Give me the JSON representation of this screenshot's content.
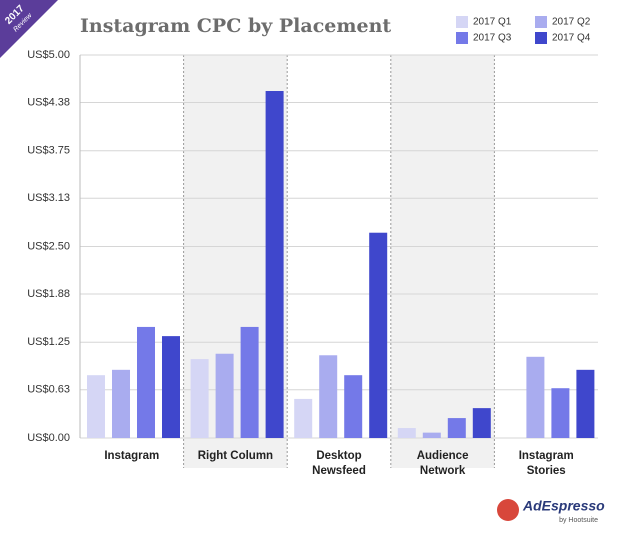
{
  "badge": {
    "year": "2017",
    "text": "Review"
  },
  "logo": {
    "name": "AdEspresso",
    "sub": "by Hootsuite"
  },
  "chart_data": {
    "type": "bar",
    "title": "Instagram CPC by Placement",
    "categories": [
      "Instagram",
      "Right Column",
      "Desktop Newsfeed",
      "Audience Network",
      "Instagram Stories"
    ],
    "series": [
      {
        "name": "2017 Q1",
        "color": "#d5d6f5",
        "values": [
          0.82,
          1.03,
          0.51,
          0.13,
          null
        ]
      },
      {
        "name": "2017 Q2",
        "color": "#a9acef",
        "values": [
          0.89,
          1.1,
          1.08,
          0.07,
          1.06
        ]
      },
      {
        "name": "2017 Q3",
        "color": "#7479e8",
        "values": [
          1.45,
          1.45,
          0.82,
          0.26,
          0.65
        ]
      },
      {
        "name": "2017 Q4",
        "color": "#3f47cc",
        "values": [
          1.33,
          4.53,
          2.68,
          0.39,
          0.89
        ]
      }
    ],
    "ylim": [
      0,
      5
    ],
    "yticks": [
      {
        "value": 0,
        "label": "US$0.00"
      },
      {
        "value": 0.63,
        "label": "US$0.63"
      },
      {
        "value": 1.25,
        "label": "US$1.25"
      },
      {
        "value": 1.88,
        "label": "US$1.88"
      },
      {
        "value": 2.5,
        "label": "US$2.50"
      },
      {
        "value": 3.13,
        "label": "US$3.13"
      },
      {
        "value": 3.75,
        "label": "US$3.75"
      },
      {
        "value": 4.38,
        "label": "US$4.38"
      },
      {
        "value": 5,
        "label": "US$5.00"
      }
    ],
    "grid": true
  }
}
